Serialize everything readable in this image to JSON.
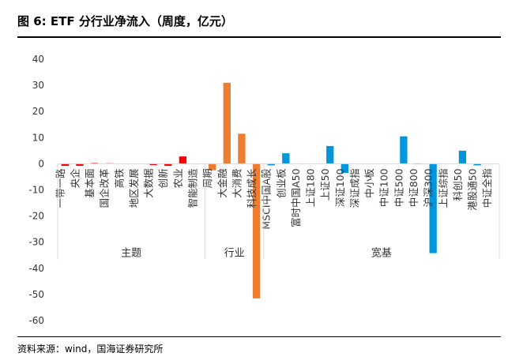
{
  "figure": {
    "title": "图 6:  ETF 分行业净流入（周度，亿元）",
    "source": "资料来源：wind，国海证券研究所"
  },
  "chart_data": {
    "type": "bar",
    "ylim": [
      -60,
      40
    ],
    "y_ticks": [
      40,
      30,
      20,
      10,
      0,
      -10,
      -20,
      -30,
      -40,
      -50,
      -60
    ],
    "grid": false,
    "categories": [
      "一带一路",
      "央企",
      "基本面",
      "国企改革",
      "高铁",
      "地区发展",
      "大数据",
      "创新",
      "农业",
      "智能制造",
      "周期",
      "大金融",
      "大消费",
      "科技成长",
      "MSCI中国A股",
      "创业板",
      "富时中国A50",
      "上证180",
      "上证50",
      "深证100",
      "深证成指",
      "中小板",
      "中证100",
      "中证500",
      "中证800",
      "沪深300",
      "上证综指",
      "科创50",
      "港股通50",
      "中证全指"
    ],
    "values": [
      -0.8,
      -0.8,
      0.3,
      0.2,
      0.0,
      0.0,
      -0.5,
      -0.8,
      2.8,
      0.0,
      -2.5,
      31.0,
      11.5,
      -51.5,
      -0.6,
      4.0,
      0.0,
      0.0,
      6.8,
      -3.5,
      0.0,
      0.0,
      0.0,
      10.5,
      -0.2,
      -34.2,
      0.0,
      5.0,
      -0.6,
      0.0
    ],
    "colors": [
      "#FF0000",
      "#FF0000",
      "#FF0000",
      "#FF0000",
      "#FF0000",
      "#FF0000",
      "#FF0000",
      "#FF0000",
      "#FF0000",
      "#FF0000",
      "#ED7D31",
      "#ED7D31",
      "#ED7D31",
      "#ED7D31",
      "#0096DC",
      "#0096DC",
      "#0096DC",
      "#0096DC",
      "#0096DC",
      "#0096DC",
      "#0096DC",
      "#0096DC",
      "#0096DC",
      "#0096DC",
      "#0096DC",
      "#0096DC",
      "#0096DC",
      "#0096DC",
      "#0096DC",
      "#0096DC"
    ],
    "groups": [
      {
        "name": "主题",
        "count": 10
      },
      {
        "name": "行业",
        "count": 4
      },
      {
        "name": "宽基",
        "count": 16
      }
    ]
  }
}
